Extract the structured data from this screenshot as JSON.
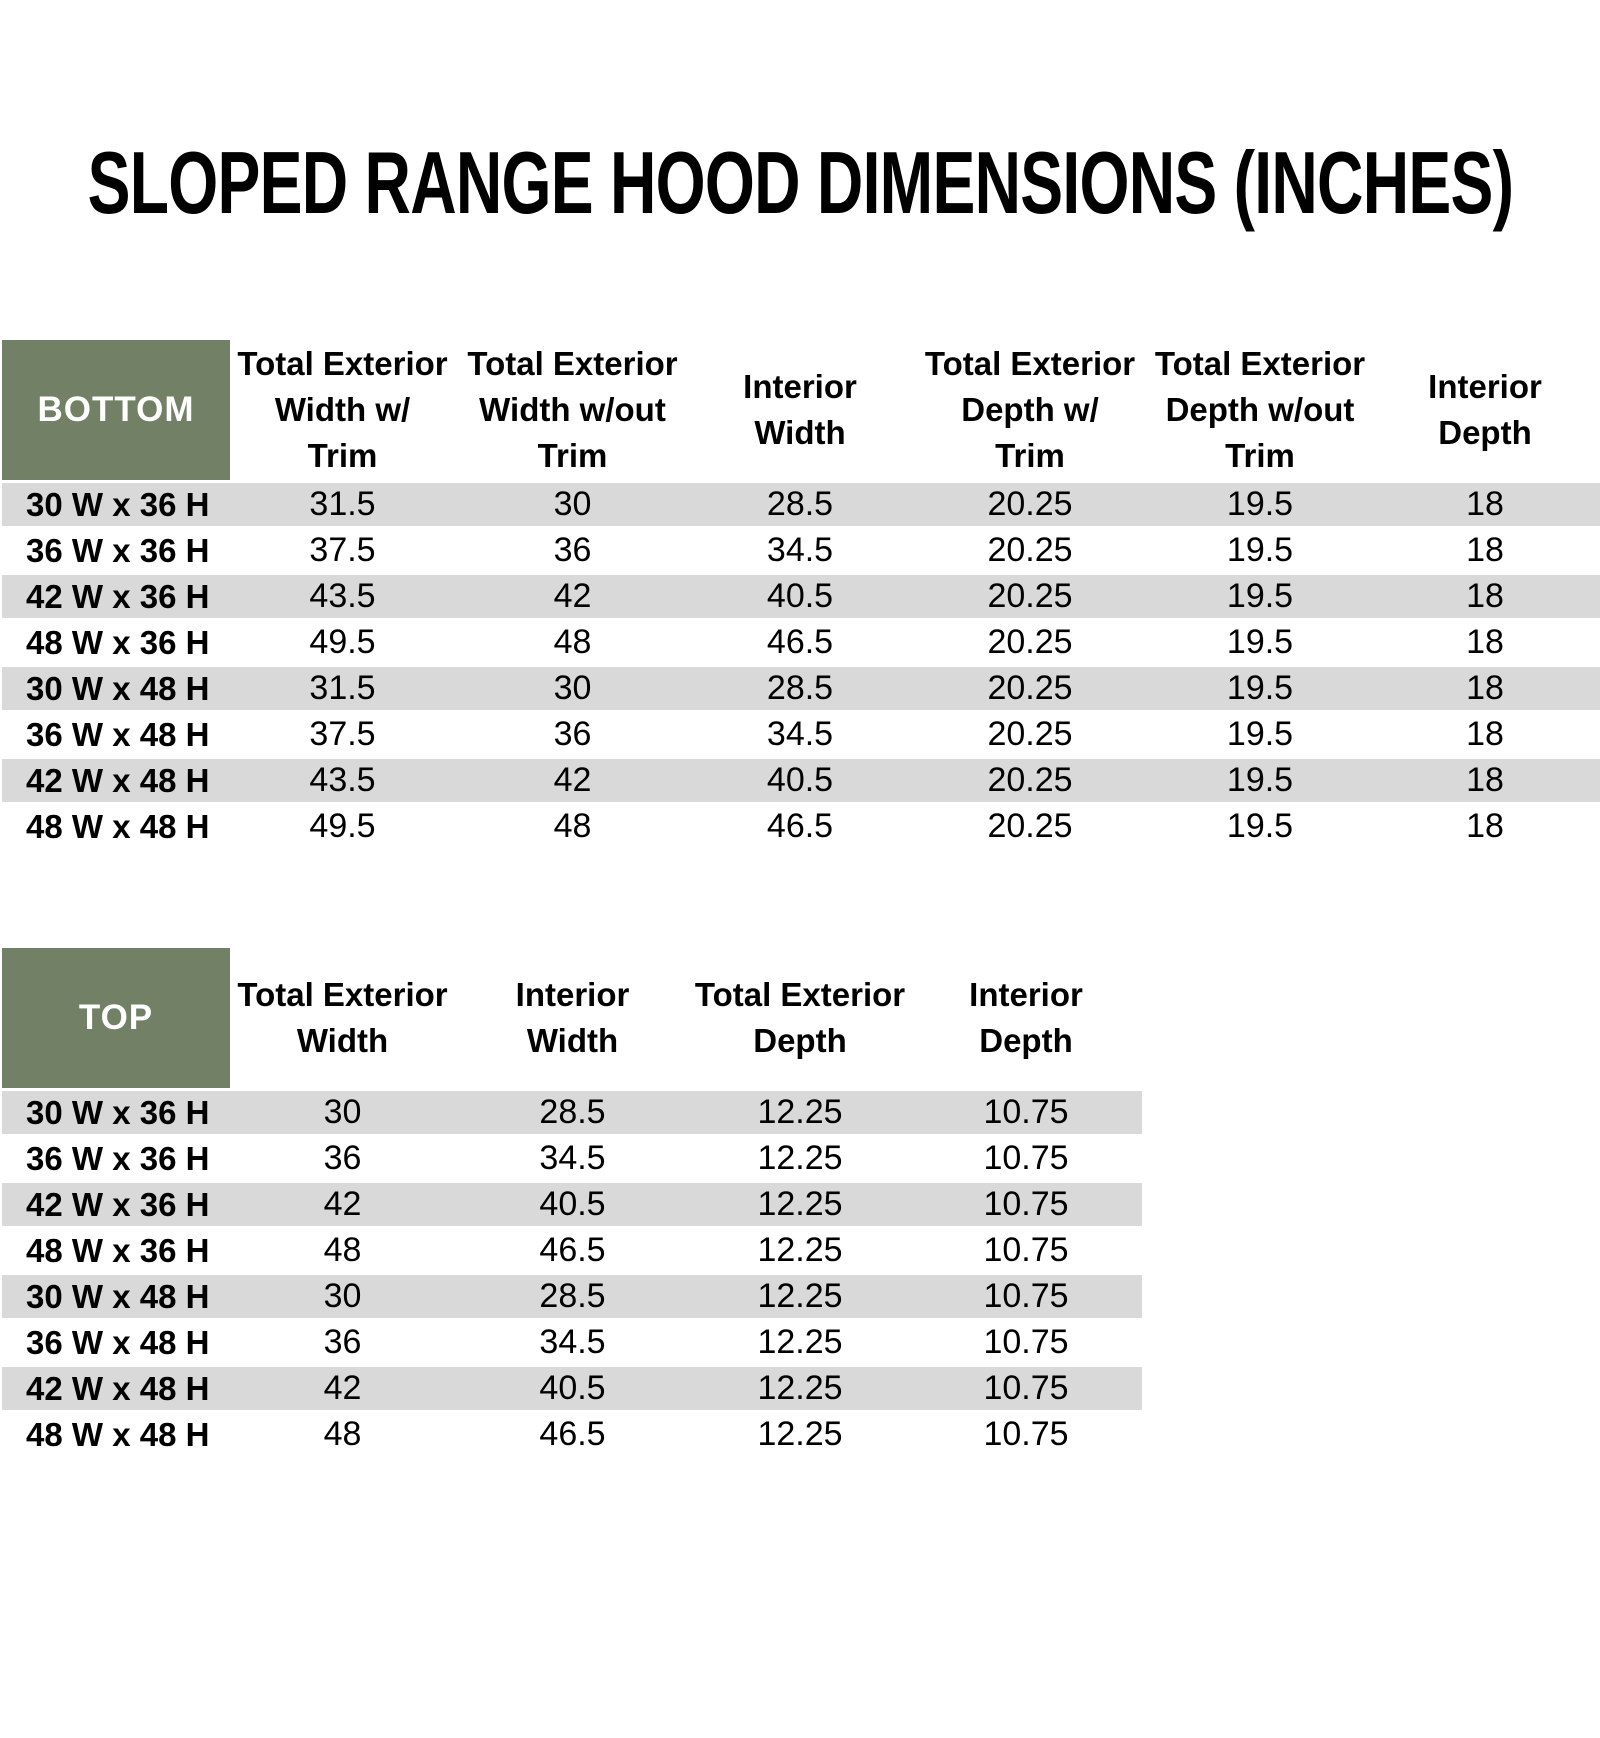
{
  "title": "SLOPED RANGE HOOD DIMENSIONS (INCHES)",
  "colors": {
    "header_fill": "#728066",
    "header_text": "#FFFFFF",
    "row_stripe": "#D9D9D9"
  },
  "bottom_table": {
    "corner_label": "BOTTOM",
    "columns": [
      "Total Exterior\nWidth w/\nTrim",
      "Total Exterior\nWidth w/out\nTrim",
      "Interior\nWidth",
      "Total Exterior\nDepth w/\nTrim",
      "Total Exterior\nDepth w/out\nTrim",
      "Interior\nDepth"
    ],
    "rows": [
      {
        "label": "30 W x 36 H",
        "values": [
          "31.5",
          "30",
          "28.5",
          "20.25",
          "19.5",
          "18"
        ]
      },
      {
        "label": "36 W x 36 H",
        "values": [
          "37.5",
          "36",
          "34.5",
          "20.25",
          "19.5",
          "18"
        ]
      },
      {
        "label": "42 W x 36 H",
        "values": [
          "43.5",
          "42",
          "40.5",
          "20.25",
          "19.5",
          "18"
        ]
      },
      {
        "label": "48 W x 36 H",
        "values": [
          "49.5",
          "48",
          "46.5",
          "20.25",
          "19.5",
          "18"
        ]
      },
      {
        "label": "30 W x 48 H",
        "values": [
          "31.5",
          "30",
          "28.5",
          "20.25",
          "19.5",
          "18"
        ]
      },
      {
        "label": "36 W x 48 H",
        "values": [
          "37.5",
          "36",
          "34.5",
          "20.25",
          "19.5",
          "18"
        ]
      },
      {
        "label": "42 W x 48 H",
        "values": [
          "43.5",
          "42",
          "40.5",
          "20.25",
          "19.5",
          "18"
        ]
      },
      {
        "label": "48 W x 48 H",
        "values": [
          "49.5",
          "48",
          "46.5",
          "20.25",
          "19.5",
          "18"
        ]
      }
    ]
  },
  "top_table": {
    "corner_label": "TOP",
    "columns": [
      "Total Exterior\nWidth",
      "Interior\nWidth",
      "Total Exterior\nDepth",
      "Interior\nDepth"
    ],
    "rows": [
      {
        "label": "30 W x 36 H",
        "values": [
          "30",
          "28.5",
          "12.25",
          "10.75"
        ]
      },
      {
        "label": "36 W x 36 H",
        "values": [
          "36",
          "34.5",
          "12.25",
          "10.75"
        ]
      },
      {
        "label": "42 W x 36 H",
        "values": [
          "42",
          "40.5",
          "12.25",
          "10.75"
        ]
      },
      {
        "label": "48 W x 36 H",
        "values": [
          "48",
          "46.5",
          "12.25",
          "10.75"
        ]
      },
      {
        "label": "30 W x 48 H",
        "values": [
          "30",
          "28.5",
          "12.25",
          "10.75"
        ]
      },
      {
        "label": "36 W x 48 H",
        "values": [
          "36",
          "34.5",
          "12.25",
          "10.75"
        ]
      },
      {
        "label": "42 W x 48 H",
        "values": [
          "42",
          "40.5",
          "12.25",
          "10.75"
        ]
      },
      {
        "label": "48 W x 48 H",
        "values": [
          "48",
          "46.5",
          "12.25",
          "10.75"
        ]
      }
    ]
  }
}
